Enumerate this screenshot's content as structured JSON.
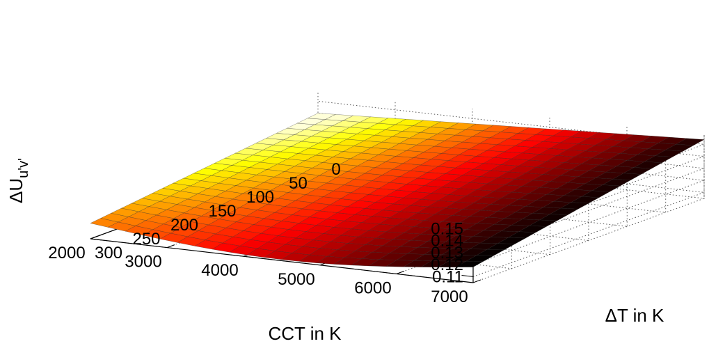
{
  "chart_data": {
    "type": "surface",
    "title": "",
    "xlabel": "CCT in K",
    "ylabel": "ΔT in K",
    "zlabel": {
      "prefix": "ΔU",
      "subscript": "u'v'"
    },
    "x_ticks": [
      "7000",
      "6000",
      "5000",
      "4000",
      "3000",
      "2000"
    ],
    "x_tick_values": [
      7000,
      6000,
      5000,
      4000,
      3000,
      2000
    ],
    "y_ticks": [
      "0",
      "50",
      "100",
      "150",
      "200",
      "250",
      "300"
    ],
    "y_tick_values": [
      0,
      50,
      100,
      150,
      200,
      250,
      300
    ],
    "z_ticks": [
      "0.11",
      "0.12",
      "0.13",
      "0.14",
      "0.15"
    ],
    "z_tick_values": [
      0.11,
      0.12,
      0.13,
      0.14,
      0.15
    ],
    "xlim": [
      2000,
      7000
    ],
    "ylim": [
      0,
      300
    ],
    "zlim": [
      0.105,
      0.158
    ],
    "grid": true,
    "colormap": "hot",
    "surface_x_range": [
      2000,
      7000
    ],
    "surface_y_range": [
      0,
      300
    ],
    "corner_values": [
      {
        "cct": 7000,
        "delta_t": 300,
        "value": 0.118
      },
      {
        "cct": 7000,
        "delta_t": 0,
        "value": 0.154
      },
      {
        "cct": 2000,
        "delta_t": 0,
        "value": 0.14
      },
      {
        "cct": 2000,
        "delta_t": 300,
        "value": 0.118
      }
    ]
  }
}
